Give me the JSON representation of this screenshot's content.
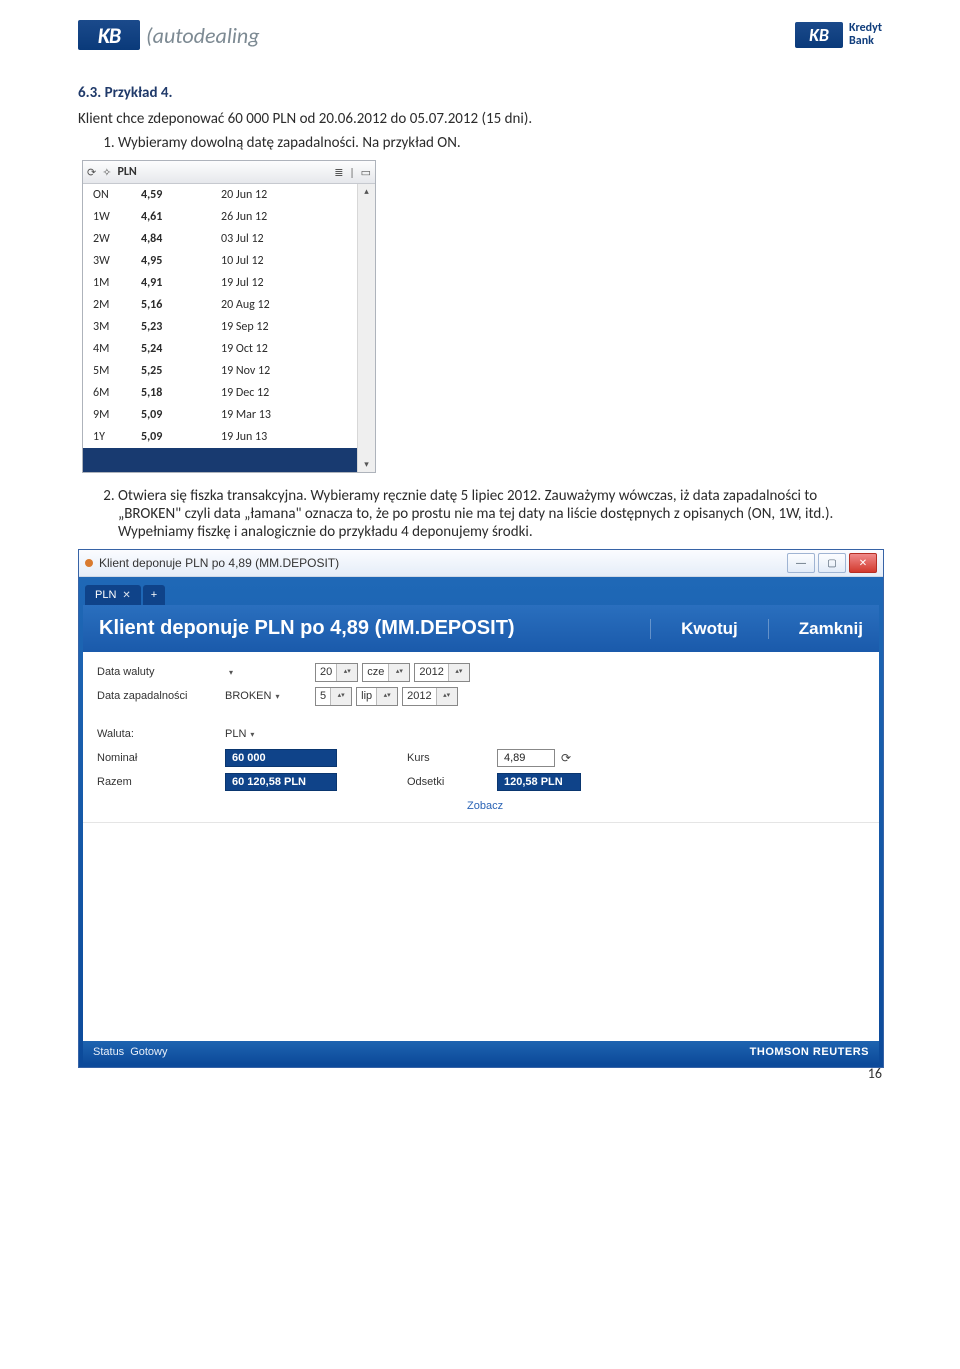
{
  "header": {
    "left_mark": "KB",
    "left_text": "autodealing",
    "right_mark": "KB",
    "right_line1": "Kredyt",
    "right_line2": "Bank"
  },
  "section_title": "6.3. Przykład 4.",
  "intro": "Klient chce zdeponować 60 000 PLN od 20.06.2012 do 05.07.2012 (15 dni).",
  "step1": "Wybieramy dowolną datę zapadalności. Na przykład ON.",
  "rates": {
    "currency": "PLN",
    "cols": [
      "tenor",
      "rate",
      "date"
    ],
    "rows": [
      {
        "tenor": "ON",
        "rate": "4,59",
        "date": "20 Jun 12"
      },
      {
        "tenor": "1W",
        "rate": "4,61",
        "date": "26 Jun 12"
      },
      {
        "tenor": "2W",
        "rate": "4,84",
        "date": "03 Jul 12"
      },
      {
        "tenor": "3W",
        "rate": "4,95",
        "date": "10 Jul 12"
      },
      {
        "tenor": "1M",
        "rate": "4,91",
        "date": "19 Jul 12"
      },
      {
        "tenor": "2M",
        "rate": "5,16",
        "date": "20 Aug 12"
      },
      {
        "tenor": "3M",
        "rate": "5,23",
        "date": "19 Sep 12"
      },
      {
        "tenor": "4M",
        "rate": "5,24",
        "date": "19 Oct 12"
      },
      {
        "tenor": "5M",
        "rate": "5,25",
        "date": "19 Nov 12"
      },
      {
        "tenor": "6M",
        "rate": "5,18",
        "date": "19 Dec 12"
      },
      {
        "tenor": "9M",
        "rate": "5,09",
        "date": "19 Mar 13"
      },
      {
        "tenor": "1Y",
        "rate": "5,09",
        "date": "19 Jun 13"
      }
    ],
    "colors": {
      "header_bg_top": "#fdfdfd",
      "header_bg_bottom": "#e6e8ec",
      "selected_bg": "#183a70",
      "selected_fg": "#ffffff",
      "row_font_size_pt": 9
    }
  },
  "step2": "Otwiera się fiszka transakcyjna. Wybieramy ręcznie datę 5 lipiec 2012. Zauważymy wówczas, iż data zapadalności to „BROKEN\" czyli data „łamana\" oznacza to, że po prostu nie ma tej daty na liście dostępnych z opisanych (ON, 1W, itd.). Wypełniamy fiszkę i analogicznie do przykładu 4 deponujemy środki.",
  "window": {
    "chrome_title": "Klient deponuje PLN po 4,89 (MM.DEPOSIT)",
    "tab_label": "PLN",
    "strip_title": "Klient deponuje PLN po 4,89 (MM.DEPOSIT)",
    "action_quote": "Kwotuj",
    "action_close": "Zamknij",
    "form": {
      "label_value_date": "Data waluty",
      "value_date_day": "20",
      "value_date_month": "cze",
      "value_date_year": "2012",
      "label_maturity": "Data zapadalności",
      "maturity_type": "BROKEN",
      "maturity_day": "5",
      "maturity_month": "lip",
      "maturity_year": "2012",
      "label_currency": "Waluta:",
      "currency_value": "PLN",
      "label_nominal": "Nominał",
      "nominal_value": "60 000",
      "label_rate": "Kurs",
      "rate_value": "4,89",
      "label_total": "Razem",
      "total_value": "60 120,58 PLN",
      "label_interest": "Odsetki",
      "interest_value": "120,58 PLN",
      "link_view": "Zobacz"
    },
    "status_label": "Status",
    "status_value": "Gotowy",
    "brand": "THOMSON REUTERS",
    "colors": {
      "frame_border": "#3763a6",
      "strip_top": "#2a6fbe",
      "strip_bottom": "#1a5aab",
      "value_input_bg": "#0f4389",
      "value_input_fg": "#ffffff",
      "status_top": "#1e64b1",
      "status_bottom": "#0d4b9b"
    }
  },
  "page_number": "16"
}
